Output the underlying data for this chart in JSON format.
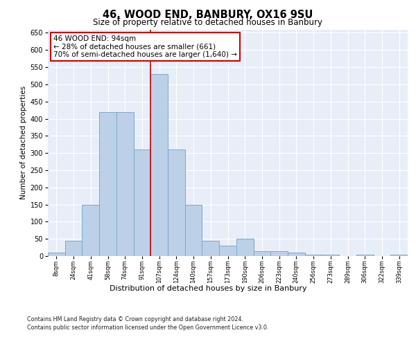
{
  "title": "46, WOOD END, BANBURY, OX16 9SU",
  "subtitle": "Size of property relative to detached houses in Banbury",
  "xlabel": "Distribution of detached houses by size in Banbury",
  "ylabel": "Number of detached properties",
  "categories": [
    "8sqm",
    "24sqm",
    "41sqm",
    "58sqm",
    "74sqm",
    "91sqm",
    "107sqm",
    "124sqm",
    "140sqm",
    "157sqm",
    "173sqm",
    "190sqm",
    "206sqm",
    "223sqm",
    "240sqm",
    "256sqm",
    "273sqm",
    "289sqm",
    "306sqm",
    "322sqm",
    "339sqm"
  ],
  "values": [
    10,
    45,
    150,
    420,
    420,
    310,
    530,
    310,
    150,
    45,
    30,
    50,
    15,
    15,
    10,
    5,
    5,
    0,
    5,
    0,
    5
  ],
  "bar_color": "#bcd0e8",
  "bar_edge_color": "#7aaac8",
  "property_line_x": 5.5,
  "property_line_color": "#cc0000",
  "annotation_text": "46 WOOD END: 94sqm\n← 28% of detached houses are smaller (661)\n70% of semi-detached houses are larger (1,640) →",
  "annotation_box_color": "#ffffff",
  "annotation_box_edge_color": "#cc0000",
  "ylim": [
    0,
    660
  ],
  "yticks": [
    0,
    50,
    100,
    150,
    200,
    250,
    300,
    350,
    400,
    450,
    500,
    550,
    600,
    650
  ],
  "background_color": "#e8eef8",
  "grid_color": "#ffffff",
  "footer_line1": "Contains HM Land Registry data © Crown copyright and database right 2024.",
  "footer_line2": "Contains public sector information licensed under the Open Government Licence v3.0."
}
